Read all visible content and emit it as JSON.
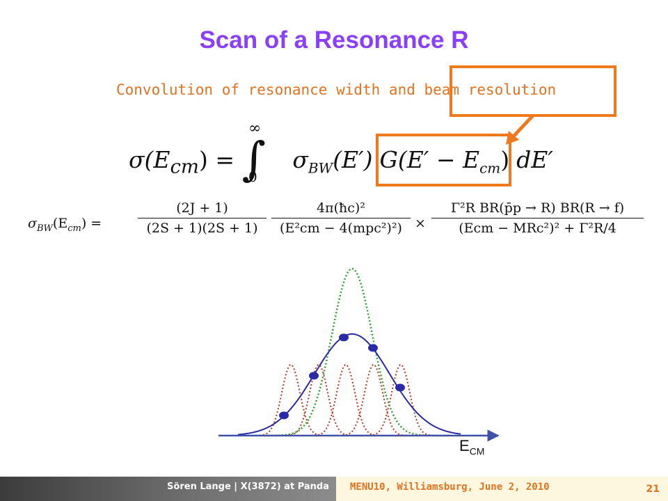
{
  "slide": {
    "title": "Scan of a Resonance R",
    "subtitle": "Convolution of resonance width and beam resolution",
    "page_number": "21"
  },
  "footer": {
    "author_talk": "Sören Lange | X(3872) at Panda",
    "conference": "MENU10, Williamsburg, June 2, 2010"
  },
  "equations": {
    "convolution": {
      "lhs": "σ(E",
      "lhs_sub": "cm",
      "lhs_close": ") =",
      "upper_limit": "∞",
      "lower_limit": "0",
      "integrand_bw": "σ",
      "integrand_bw_sub": "BW",
      "integrand_bw_arg": "(E′)",
      "gaussian": "G(E′ − E",
      "gaussian_sub": "cm",
      "gaussian_close": ")",
      "differential": "dE′"
    },
    "breit_wigner": {
      "lhs": "σ",
      "lhs_sub": "BW",
      "lhs_arg": "(E",
      "lhs_arg_sub": "cm",
      "lhs_close": ") =",
      "f1_num": "(2J + 1)",
      "f1_den": "(2S + 1)(2S + 1)",
      "f2_num": "4π(ħc)²",
      "f2_den": "(E²cm − 4(mpc²)²)",
      "times": "×",
      "f3_num": "Γ²R BR(p̄p → R) BR(R → f)",
      "f3_den": "(Ecm − MRc²)² + Γ²R/4"
    }
  },
  "plot": {
    "axis_label": "E",
    "axis_label_sub": "CM",
    "colors": {
      "measured": "#2a2aa8",
      "resonance": "#2ea02e",
      "beam": "#b5341f",
      "axis": "#4050a8",
      "highlight": "#ef7a1e"
    }
  }
}
